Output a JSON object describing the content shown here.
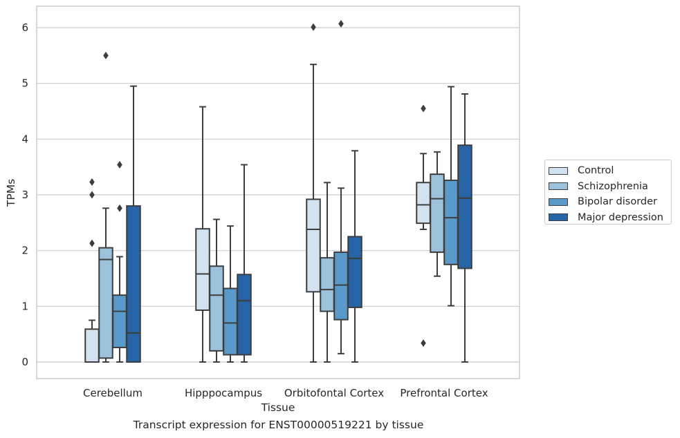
{
  "caption": "Transcript expression for ENST00000519221 by tissue",
  "chart_data": {
    "type": "box",
    "xlabel": "Tissue",
    "ylabel": "TPMs",
    "ylim": [
      -0.3,
      6.4
    ],
    "yticks": [
      0,
      1,
      2,
      3,
      4,
      5,
      6
    ],
    "grid": "horizontal",
    "legend_position": "right",
    "categories": [
      "Cerebellum",
      "Hipppocampus",
      "Orbitofontal Cortex",
      "Prefrontal Cortex"
    ],
    "series": [
      {
        "name": "Control",
        "color": "#d3e2f1",
        "boxes": [
          {
            "q1": 0.0,
            "median": 0.0,
            "q3": 0.59,
            "whisker_low": 0.0,
            "whisker_high": 0.75,
            "outliers": [
              2.13,
              3.0,
              3.23
            ]
          },
          {
            "q1": 0.93,
            "median": 1.58,
            "q3": 2.39,
            "whisker_low": 0.0,
            "whisker_high": 4.58,
            "outliers": []
          },
          {
            "q1": 1.26,
            "median": 2.38,
            "q3": 2.92,
            "whisker_low": 0.0,
            "whisker_high": 5.34,
            "outliers": [
              6.01
            ]
          },
          {
            "q1": 2.49,
            "median": 2.82,
            "q3": 3.22,
            "whisker_low": 2.38,
            "whisker_high": 3.74,
            "outliers": [
              0.34,
              4.55
            ]
          }
        ]
      },
      {
        "name": "Schizophrenia",
        "color": "#9cc1dd",
        "boxes": [
          {
            "q1": 0.07,
            "median": 1.84,
            "q3": 2.05,
            "whisker_low": 0.0,
            "whisker_high": 2.76,
            "outliers": [
              5.5
            ]
          },
          {
            "q1": 0.2,
            "median": 1.2,
            "q3": 1.72,
            "whisker_low": 0.0,
            "whisker_high": 2.56,
            "outliers": []
          },
          {
            "q1": 0.91,
            "median": 1.3,
            "q3": 1.87,
            "whisker_low": 0.0,
            "whisker_high": 3.22,
            "outliers": []
          },
          {
            "q1": 1.97,
            "median": 2.93,
            "q3": 3.37,
            "whisker_low": 1.54,
            "whisker_high": 3.77,
            "outliers": []
          }
        ]
      },
      {
        "name": "Bipolar disorder",
        "color": "#5a9ac9",
        "boxes": [
          {
            "q1": 0.26,
            "median": 0.91,
            "q3": 1.2,
            "whisker_low": 0.0,
            "whisker_high": 1.89,
            "outliers": [
              2.76,
              3.54
            ]
          },
          {
            "q1": 0.13,
            "median": 0.7,
            "q3": 1.32,
            "whisker_low": 0.0,
            "whisker_high": 2.44,
            "outliers": []
          },
          {
            "q1": 0.76,
            "median": 1.38,
            "q3": 1.97,
            "whisker_low": 0.15,
            "whisker_high": 3.12,
            "outliers": [
              6.07
            ]
          },
          {
            "q1": 1.75,
            "median": 2.59,
            "q3": 3.26,
            "whisker_low": 1.01,
            "whisker_high": 4.94,
            "outliers": []
          }
        ]
      },
      {
        "name": "Major depression",
        "color": "#2765a6",
        "boxes": [
          {
            "q1": 0.0,
            "median": 0.52,
            "q3": 2.8,
            "whisker_low": 0.0,
            "whisker_high": 4.95,
            "outliers": []
          },
          {
            "q1": 0.13,
            "median": 1.1,
            "q3": 1.57,
            "whisker_low": 0.0,
            "whisker_high": 3.54,
            "outliers": []
          },
          {
            "q1": 0.98,
            "median": 1.86,
            "q3": 2.25,
            "whisker_low": 0.0,
            "whisker_high": 3.79,
            "outliers": []
          },
          {
            "q1": 1.68,
            "median": 2.94,
            "q3": 3.89,
            "whisker_low": 0.0,
            "whisker_high": 4.81,
            "outliers": []
          }
        ]
      }
    ]
  }
}
